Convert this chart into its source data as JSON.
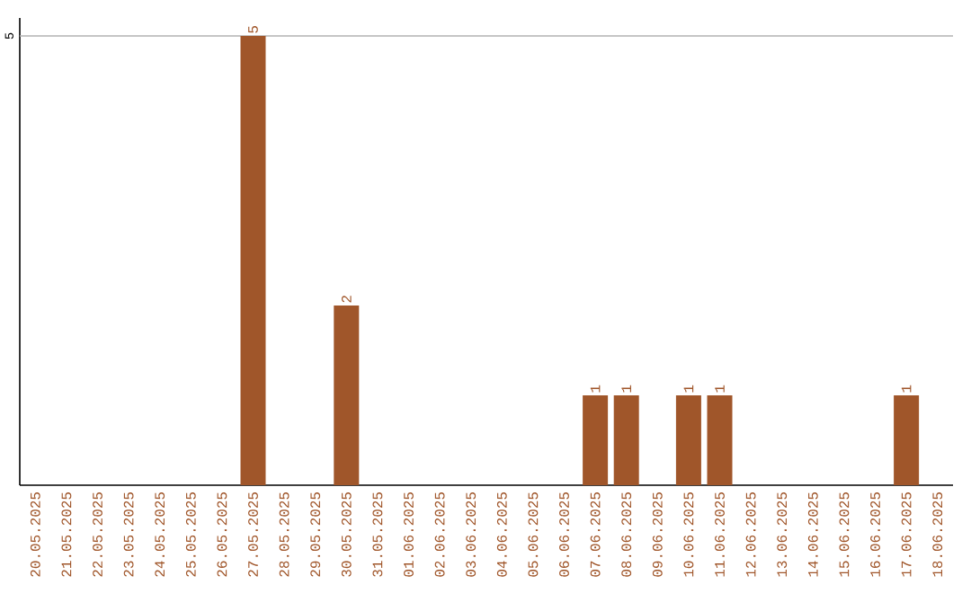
{
  "chart_data": {
    "type": "bar",
    "categories": [
      "20.05.2025",
      "21.05.2025",
      "22.05.2025",
      "23.05.2025",
      "24.05.2025",
      "25.05.2025",
      "26.05.2025",
      "27.05.2025",
      "28.05.2025",
      "29.05.2025",
      "30.05.2025",
      "31.05.2025",
      "01.06.2025",
      "02.06.2025",
      "03.06.2025",
      "04.06.2025",
      "05.06.2025",
      "06.06.2025",
      "07.06.2025",
      "08.06.2025",
      "09.06.2025",
      "10.06.2025",
      "11.06.2025",
      "12.06.2025",
      "13.06.2025",
      "14.06.2025",
      "15.06.2025",
      "16.06.2025",
      "17.06.2025",
      "18.06.2025"
    ],
    "values": [
      0,
      0,
      0,
      0,
      0,
      0,
      0,
      5,
      0,
      0,
      2,
      0,
      0,
      0,
      0,
      0,
      0,
      0,
      1,
      1,
      0,
      1,
      1,
      0,
      0,
      0,
      0,
      0,
      1,
      0
    ],
    "value_labels": [
      null,
      null,
      null,
      null,
      null,
      null,
      null,
      "5",
      null,
      null,
      "2",
      null,
      null,
      null,
      null,
      null,
      null,
      null,
      "1",
      "1",
      null,
      "1",
      "1",
      null,
      null,
      null,
      null,
      null,
      "1",
      null
    ],
    "color": "#a0562a",
    "ylim": [
      0,
      5.2
    ],
    "yticks": [
      5
    ],
    "grid": "y"
  }
}
